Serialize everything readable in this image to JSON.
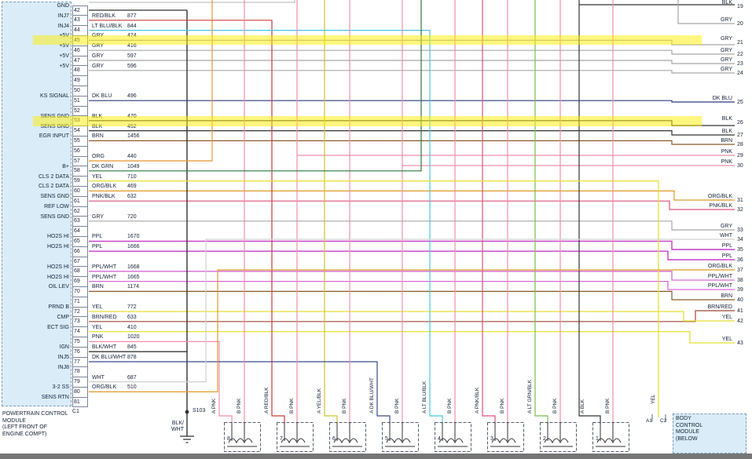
{
  "pcm": {
    "title_lines": [
      "POWERTRAIN CONTROL",
      "MODULE",
      "(LEFT FRONT OF",
      "ENGINE COMPT)"
    ],
    "connector_label": "C1",
    "pins": [
      {
        "pin": "42",
        "label": "GND",
        "color": "",
        "circuit": ""
      },
      {
        "pin": "43",
        "label": "INJ7",
        "color": "RED/BLK",
        "circuit": "877"
      },
      {
        "pin": "44",
        "label": "INJ4",
        "color": "LT BLU/BLK",
        "circuit": "844"
      },
      {
        "pin": "45",
        "label": "+5V",
        "color": "GRY",
        "circuit": "474"
      },
      {
        "pin": "46",
        "label": "+5V",
        "color": "GRY",
        "circuit": "416"
      },
      {
        "pin": "47",
        "label": "+5V",
        "color": "GRY",
        "circuit": "597"
      },
      {
        "pin": "48",
        "label": "+5V",
        "color": "GRY",
        "circuit": "596"
      },
      {
        "pin": "49",
        "label": "",
        "color": "",
        "circuit": ""
      },
      {
        "pin": "50",
        "label": "",
        "color": "",
        "circuit": ""
      },
      {
        "pin": "51",
        "label": "KS SIGNAL",
        "color": "DK BLU",
        "circuit": "496"
      },
      {
        "pin": "52",
        "label": "",
        "color": "",
        "circuit": ""
      },
      {
        "pin": "53",
        "label": "SENS GND",
        "color": "BLK",
        "circuit": "470"
      },
      {
        "pin": "54",
        "label": "SENS GND",
        "color": "BLK",
        "circuit": "452"
      },
      {
        "pin": "55",
        "label": "EGR INPUT",
        "color": "BRN",
        "circuit": "1456"
      },
      {
        "pin": "56",
        "label": "",
        "color": "",
        "circuit": ""
      },
      {
        "pin": "57",
        "label": "",
        "color": "ORG",
        "circuit": "440"
      },
      {
        "pin": "58",
        "label": "B+",
        "color": "DK GRN",
        "circuit": "1049"
      },
      {
        "pin": "59",
        "label": "CLS 2 DATA",
        "color": "YEL",
        "circuit": "710"
      },
      {
        "pin": "60",
        "label": "CLS 2 DATA",
        "color": "ORG/BLK",
        "circuit": "469"
      },
      {
        "pin": "61",
        "label": "SENS GND",
        "color": "PNK/BLK",
        "circuit": "632"
      },
      {
        "pin": "62",
        "label": "REF LOW",
        "color": "",
        "circuit": ""
      },
      {
        "pin": "63",
        "label": "SENS GND",
        "color": "GRY",
        "circuit": "720"
      },
      {
        "pin": "64",
        "label": "",
        "color": "",
        "circuit": ""
      },
      {
        "pin": "65",
        "label": "HO2S HI",
        "color": "PPL",
        "circuit": "1670"
      },
      {
        "pin": "66",
        "label": "HO2S HI",
        "color": "PPL",
        "circuit": "1666"
      },
      {
        "pin": "67",
        "label": "",
        "color": "",
        "circuit": ""
      },
      {
        "pin": "68",
        "label": "HO2S HI",
        "color": "PPL/WHT",
        "circuit": "1668"
      },
      {
        "pin": "69",
        "label": "HO2S HI",
        "color": "PPL/WHT",
        "circuit": "1665"
      },
      {
        "pin": "70",
        "label": "OIL LEV",
        "color": "BRN",
        "circuit": "1174"
      },
      {
        "pin": "71",
        "label": "",
        "color": "",
        "circuit": ""
      },
      {
        "pin": "72",
        "label": "PRND B",
        "color": "YEL",
        "circuit": "772"
      },
      {
        "pin": "73",
        "label": "CMP",
        "color": "BRN/RED",
        "circuit": "633"
      },
      {
        "pin": "74",
        "label": "ECT SIG",
        "color": "YEL",
        "circuit": "410"
      },
      {
        "pin": "75",
        "label": "",
        "color": "PNK",
        "circuit": "1020"
      },
      {
        "pin": "76",
        "label": "IGN",
        "color": "BLK/WHT",
        "circuit": "845"
      },
      {
        "pin": "77",
        "label": "INJ5",
        "color": "DK BLU/WHT",
        "circuit": "878"
      },
      {
        "pin": "78",
        "label": "INJ8",
        "color": "",
        "circuit": ""
      },
      {
        "pin": "79",
        "label": "",
        "color": "WHT",
        "circuit": "687"
      },
      {
        "pin": "80",
        "label": "3-2 SS",
        "color": "ORG/BLK",
        "circuit": "510"
      },
      {
        "pin": "81",
        "label": "SENS RTN",
        "color": "",
        "circuit": ""
      }
    ]
  },
  "right_wires": [
    {
      "num": "19",
      "color": "BLK"
    },
    {
      "num": "20",
      "color": "GRY"
    },
    {
      "num": "21",
      "color": "GRY"
    },
    {
      "num": "22",
      "color": "GRY"
    },
    {
      "num": "23",
      "color": "GRY"
    },
    {
      "num": "24",
      "color": "GRY"
    },
    {
      "num": "25",
      "color": "DK BLU"
    },
    {
      "num": "26",
      "color": "BLK"
    },
    {
      "num": "27",
      "color": "BLK"
    },
    {
      "num": "28",
      "color": "BRN"
    },
    {
      "num": "29",
      "color": "PNK"
    },
    {
      "num": "30",
      "color": "PNK"
    },
    {
      "num": "31",
      "color": "ORG/BLK"
    },
    {
      "num": "32",
      "color": "PNK/BLK"
    },
    {
      "num": "33",
      "color": "GRY"
    },
    {
      "num": "34",
      "color": "WHT"
    },
    {
      "num": "35",
      "color": "PPL"
    },
    {
      "num": "36",
      "color": "PPL"
    },
    {
      "num": "37",
      "color": "ORG/BLK"
    },
    {
      "num": "38",
      "color": "PPL/WHT"
    },
    {
      "num": "39",
      "color": "PPL/WHT"
    },
    {
      "num": "40",
      "color": "BRN"
    },
    {
      "num": "41",
      "color": "BRN/RED"
    },
    {
      "num": "42",
      "color": "YEL"
    },
    {
      "num": "43",
      "color": "YEL"
    }
  ],
  "injectors": [
    {
      "num": "8",
      "a_label": "A PNK",
      "b_label": "B PNK"
    },
    {
      "num": "7",
      "a_label": "A RED/BLK",
      "b_label": "B PNK"
    },
    {
      "num": "6",
      "a_label": "A YEL/BLK",
      "b_label": "B PNK"
    },
    {
      "num": "5",
      "a_label": "A DK BLU/WHT",
      "b_label": "B PNK"
    },
    {
      "num": "4",
      "a_label": "A LT BLU/BLK",
      "b_label": "B PNK"
    },
    {
      "num": "3",
      "a_label": "A PNK/BLK",
      "b_label": "B PNK"
    },
    {
      "num": "2",
      "a_label": "A LT GRN/BLK",
      "b_label": "B PNK"
    },
    {
      "num": "1",
      "a_label": "A BLK",
      "b_label": "B PNK"
    }
  ],
  "splice": {
    "label": "S103",
    "wire_line1": "BLK/",
    "wire_line2": "WHT"
  },
  "bcm": {
    "pin_a": "A1",
    "pin_c": "C2",
    "wire_label": "YEL",
    "title_lines": [
      "BODY",
      "CONTROL",
      "MODULE",
      "(BELOW"
    ]
  },
  "highlight_color": "#ffee00",
  "colors": {
    "pnk": "#ef8fab",
    "red_blk": "#cc3b3b",
    "gry": "#a8a8a8",
    "yel": "#e8e032",
    "dk_blu": "#2a3f80",
    "lt_blu_blk": "#45c8dc",
    "blk": "#333333",
    "brn": "#8a5a2a",
    "org": "#e8952e",
    "dk_grn": "#2a7a3a",
    "ppl": "#c83fc8",
    "ppl_wht": "#d66ad6",
    "wht": "#d0d0d0",
    "pnk_blk": "#d9537a",
    "brn_red": "#9a4a30",
    "lt_grn_blk": "#74c04a",
    "org_blk": "#e09a2a",
    "yel_blk": "#cfc22e",
    "dk_blu_wht": "#3a4a8e"
  }
}
